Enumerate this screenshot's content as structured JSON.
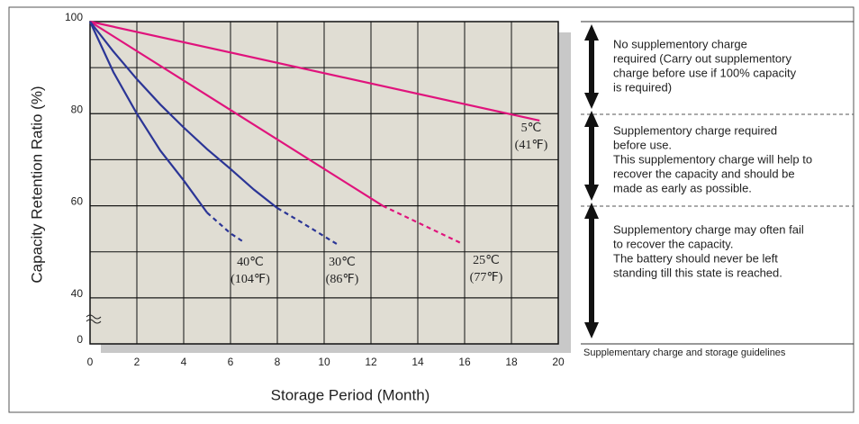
{
  "chart_data": {
    "type": "line",
    "xlabel": "Storage Period (Month)",
    "ylabel": "Capacity Retention Ratio (%)",
    "xlim": [
      0,
      20
    ],
    "xticks": [
      0,
      2,
      4,
      6,
      8,
      10,
      12,
      14,
      16,
      18,
      20
    ],
    "ylim": [
      0,
      100
    ],
    "yticks": [
      0,
      40,
      60,
      80,
      100
    ],
    "y_break": [
      0,
      40
    ],
    "grid": true,
    "series": [
      {
        "name": "5℃",
        "name_f": "(41℉)",
        "color": "#e0137c",
        "x": [
          0,
          19.2
        ],
        "values": [
          100,
          78.5
        ],
        "dashed_after": null
      },
      {
        "name": "25℃",
        "name_f": "(77℉)",
        "color": "#e0137c",
        "x": [
          0,
          12.5,
          15.8
        ],
        "values": [
          100,
          60,
          52
        ],
        "dashed_after": 1
      },
      {
        "name": "30℃",
        "name_f": "(86℉)",
        "color": "#2b3596",
        "x": [
          0,
          1,
          2,
          3,
          4,
          5,
          6,
          7,
          8,
          9,
          10.6
        ],
        "values": [
          100,
          93.5,
          87.5,
          82,
          77,
          72.3,
          68,
          63.5,
          59.5,
          56.5,
          51.5
        ],
        "dashed_after": 8
      },
      {
        "name": "40℃",
        "name_f": "(104℉)",
        "color": "#2b3596",
        "x": [
          0,
          1,
          2,
          3,
          4,
          5,
          6,
          6.6
        ],
        "values": [
          100,
          89,
          80,
          72,
          65.5,
          58.5,
          54,
          52
        ],
        "dashed_after": 5
      }
    ]
  },
  "guidelines": [
    {
      "lines": [
        "No supplementory charge",
        "required (Carry out supplementory",
        "charge before use if 100% capacity",
        "is required)"
      ]
    },
    {
      "lines": [
        "Supplementory charge required",
        "before use.",
        "This supplementory charge will help to",
        "recover  the capacity and should be",
        "made as early as possible."
      ]
    },
    {
      "lines": [
        "Supplementory charge may often fail",
        "to recover the capacity.",
        "The battery should never be left",
        "standing till this state is reached."
      ]
    }
  ],
  "caption": "Supplementary charge and storage guidelines"
}
